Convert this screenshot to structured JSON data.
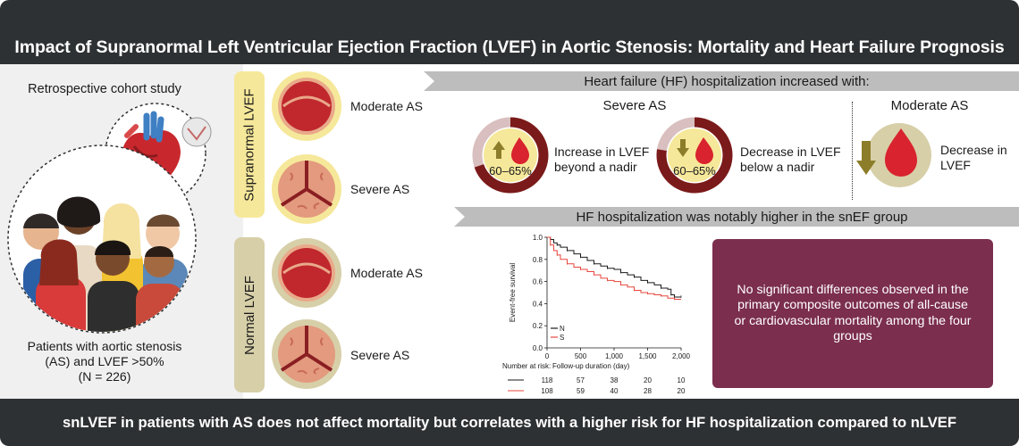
{
  "header": {
    "title": "Impact of Supranormal Left Ventricular Ejection Fraction (LVEF) in Aortic Stenosis: Mortality and Heart Failure Prognosis"
  },
  "left": {
    "study_type": "Retrospective cohort study",
    "patients_line1": "Patients with aortic stenosis",
    "patients_line2": "(AS) and LVEF >50%",
    "patients_line3": "(N = 226)"
  },
  "groups": {
    "supranormal": {
      "label": "Supranormal LVEF",
      "moderate": "Moderate AS",
      "severe": "Severe AS"
    },
    "normal": {
      "label": "Normal LVEF",
      "moderate": "Moderate AS",
      "severe": "Severe AS"
    }
  },
  "hf": {
    "banner": "Heart failure (HF) hospitalization increased with:",
    "severe_title": "Severe AS",
    "moderate_title": "Moderate AS",
    "item1": {
      "value": "60–65%",
      "line1": "Increase in LVEF",
      "line2": "beyond a nadir"
    },
    "item2": {
      "value": "60–65%",
      "line1": "Decrease in LVEF",
      "line2": "below a nadir"
    },
    "item3": {
      "line1": "Decrease in",
      "line2": "LVEF"
    }
  },
  "km": {
    "banner": "HF hospitalization was notably higher in the snEF group",
    "chart_data": {
      "type": "line",
      "title": "",
      "xlabel": "Follow-up duration (day)",
      "ylabel": "Event-free survival",
      "xlim": [
        0,
        2000
      ],
      "ylim": [
        0,
        1.0
      ],
      "x_ticks": [
        "0",
        "500",
        "1,000",
        "1,500",
        "2,000"
      ],
      "y_ticks": [
        "0.0",
        "0.2",
        "0.4",
        "0.6",
        "0.8",
        "1.0"
      ],
      "legend": [
        "N",
        "S"
      ],
      "legend_position": "bottom-left",
      "series": [
        {
          "name": "N",
          "color": "#1a1a1a",
          "x": [
            0,
            50,
            100,
            150,
            200,
            300,
            400,
            500,
            600,
            700,
            800,
            900,
            1000,
            1100,
            1200,
            1300,
            1400,
            1500,
            1600,
            1700,
            1800,
            1850,
            1900,
            2000
          ],
          "y": [
            1.0,
            0.98,
            0.95,
            0.93,
            0.91,
            0.88,
            0.85,
            0.82,
            0.79,
            0.76,
            0.74,
            0.72,
            0.71,
            0.68,
            0.66,
            0.64,
            0.61,
            0.59,
            0.57,
            0.54,
            0.53,
            0.48,
            0.46,
            0.46
          ]
        },
        {
          "name": "S",
          "color": "#e8463c",
          "x": [
            0,
            50,
            100,
            150,
            200,
            300,
            400,
            500,
            600,
            700,
            800,
            900,
            1000,
            1100,
            1200,
            1300,
            1400,
            1500,
            1600,
            1700,
            1800,
            1900,
            2000
          ],
          "y": [
            1.0,
            0.93,
            0.88,
            0.84,
            0.8,
            0.76,
            0.73,
            0.71,
            0.69,
            0.66,
            0.63,
            0.61,
            0.6,
            0.57,
            0.55,
            0.52,
            0.5,
            0.49,
            0.48,
            0.47,
            0.45,
            0.44,
            0.44
          ]
        }
      ],
      "risk_table": {
        "title": "Number at risk:",
        "rows": [
          {
            "name": "N",
            "color": "#1a1a1a",
            "values": [
              "118",
              "57",
              "38",
              "20",
              "10"
            ]
          },
          {
            "name": "S",
            "color": "#e8463c",
            "values": [
              "108",
              "59",
              "40",
              "28",
              "20"
            ]
          }
        ]
      }
    }
  },
  "conclusion": {
    "text": "No significant differences observed in the primary composite outcomes of all-cause or cardiovascular mortality among the four groups"
  },
  "footer": {
    "text": "snLVEF in patients with AS does not affect mortality but correlates with a higher risk for HF hospitalization compared to nLVEF"
  },
  "colors": {
    "dark": "#2e3133",
    "maroon": "#7b2e4e",
    "ring_dark": "#7b1a1a",
    "ring_light": "#d9bfbf",
    "yellow": "#f6e89a",
    "red": "#d9232e",
    "olive": "#8c7d2a",
    "band": "#bdbdbd"
  },
  "icons": [
    "heart-illustration-icon",
    "valve-icon",
    "people-crowd-icon",
    "up-arrow-icon",
    "down-arrow-icon",
    "blood-drop-icon"
  ]
}
